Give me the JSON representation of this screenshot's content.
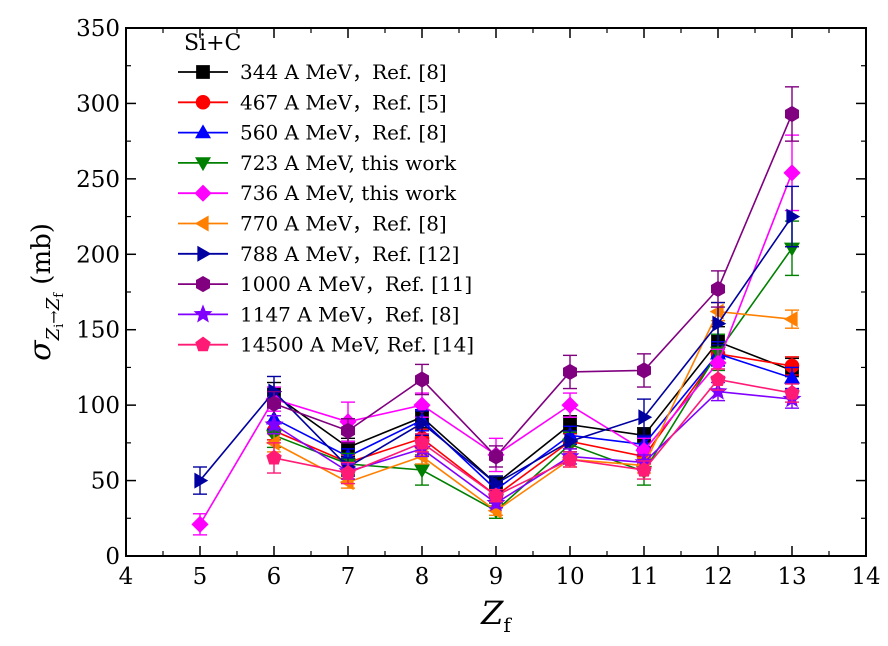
{
  "chart_data": {
    "type": "line",
    "title": "",
    "legend_title": "Si+C",
    "legend_position": "top-left",
    "xlabel": {
      "main": "Z",
      "sub": "f"
    },
    "ylabel": {
      "sigma": "σ",
      "sub_zi": "Z",
      "sub_zi_sub": "i",
      "arrow": "→",
      "sub_zf": "Z",
      "sub_zf_sub": "f",
      "unit": "(mb)"
    },
    "xlim": [
      4,
      14
    ],
    "ylim": [
      0,
      350
    ],
    "xticks": [
      4,
      5,
      6,
      7,
      8,
      9,
      10,
      11,
      12,
      13,
      14
    ],
    "yticks": [
      0,
      50,
      100,
      150,
      200,
      250,
      300,
      350
    ],
    "grid": false,
    "series": [
      {
        "name": "344 A MeV，Ref. [8]",
        "color": "#000000",
        "marker": "square",
        "x": [
          6,
          7,
          8,
          9,
          10,
          11,
          12,
          13
        ],
        "y": [
          107,
          72,
          92,
          48,
          87,
          80,
          142,
          123
        ],
        "err": [
          8,
          6,
          7,
          5,
          6,
          5,
          10,
          8
        ]
      },
      {
        "name": "467 A MeV，Ref. [5]",
        "color": "#ff0000",
        "marker": "circle",
        "x": [
          6,
          7,
          8,
          9,
          10,
          11,
          12,
          13
        ],
        "y": [
          83,
          62,
          78,
          40,
          76,
          66,
          134,
          126
        ],
        "err": [
          6,
          5,
          6,
          4,
          5,
          5,
          8,
          6
        ]
      },
      {
        "name": "560 A MeV，Ref. [8]",
        "color": "#0000ff",
        "marker": "triangle-up",
        "x": [
          6,
          7,
          8,
          9,
          10,
          11,
          12,
          13
        ],
        "y": [
          91,
          66,
          90,
          44,
          80,
          74,
          134,
          118
        ],
        "err": [
          7,
          5,
          7,
          4,
          6,
          5,
          8,
          7
        ]
      },
      {
        "name": "723 A MeV, this work",
        "color": "#008000",
        "marker": "triangle-down",
        "x": [
          6,
          7,
          8,
          9,
          10,
          11,
          12,
          13
        ],
        "y": [
          80,
          61,
          57,
          30,
          74,
          56,
          135,
          204
        ],
        "err": [
          8,
          7,
          10,
          5,
          8,
          9,
          12,
          18
        ]
      },
      {
        "name": "736 A MeV, this work",
        "color": "#ff00ff",
        "marker": "diamond",
        "x": [
          5,
          6,
          7,
          8,
          9,
          10,
          11,
          12,
          13
        ],
        "y": [
          21,
          104,
          89,
          100,
          67,
          100,
          70,
          128,
          254
        ],
        "err": [
          7,
          8,
          13,
          8,
          11,
          8,
          8,
          9,
          25
        ]
      },
      {
        "name": "770 A MeV，Ref. [8]",
        "color": "#ff8000",
        "marker": "triangle-left",
        "x": [
          6,
          7,
          8,
          9,
          10,
          11,
          12,
          13
        ],
        "y": [
          75,
          49,
          66,
          30,
          64,
          60,
          162,
          157
        ],
        "err": [
          6,
          4,
          5,
          3,
          5,
          5,
          6,
          6
        ]
      },
      {
        "name": "788 A MeV，Ref. [12]",
        "color": "#0000a0",
        "marker": "triangle-right",
        "x": [
          5,
          6,
          7,
          8,
          9,
          10,
          11,
          12,
          13
        ],
        "y": [
          50,
          109,
          59,
          88,
          48,
          76,
          92,
          154,
          225
        ],
        "err": [
          9,
          10,
          6,
          8,
          5,
          7,
          12,
          14,
          20
        ]
      },
      {
        "name": "1000 A MeV，Ref. [11]",
        "color": "#800080",
        "marker": "hexagon",
        "x": [
          6,
          7,
          8,
          9,
          10,
          11,
          12,
          13
        ],
        "y": [
          101,
          83,
          117,
          66,
          122,
          123,
          177,
          293
        ],
        "err": [
          8,
          8,
          10,
          7,
          11,
          11,
          12,
          18
        ]
      },
      {
        "name": "1147 A MeV，Ref. [8]",
        "color": "#8000ff",
        "marker": "star",
        "x": [
          6,
          7,
          8,
          9,
          10,
          11,
          12,
          13
        ],
        "y": [
          87,
          56,
          71,
          35,
          66,
          62,
          109,
          104
        ],
        "err": [
          6,
          5,
          5,
          3,
          5,
          5,
          6,
          6
        ]
      },
      {
        "name": "14500 A MeV, Ref. [14]",
        "color": "#ff1a75",
        "marker": "pentagon",
        "x": [
          6,
          7,
          8,
          9,
          10,
          11,
          12,
          13
        ],
        "y": [
          65,
          55,
          75,
          40,
          64,
          57,
          117,
          108
        ],
        "err": [
          10,
          7,
          6,
          4,
          5,
          6,
          7,
          6
        ]
      }
    ]
  }
}
